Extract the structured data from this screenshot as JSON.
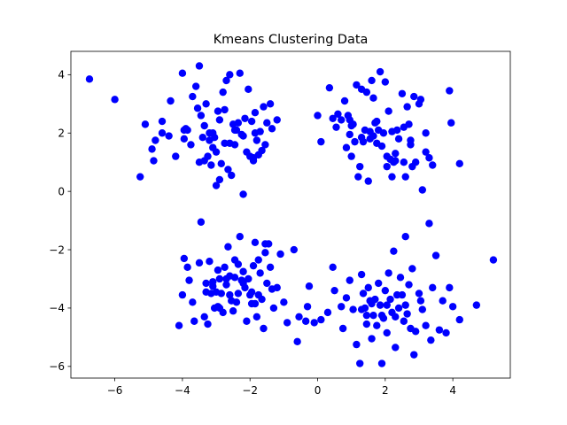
{
  "chart_data": {
    "type": "scatter",
    "title": "Kmeans Clustering Data",
    "xlabel": "",
    "ylabel": "",
    "xlim": [
      -7.3,
      5.7
    ],
    "ylim": [
      -6.4,
      4.8
    ],
    "xticks": [
      -6,
      -4,
      -2,
      0,
      2,
      4
    ],
    "yticks": [
      -6,
      -4,
      -2,
      0,
      2,
      4
    ],
    "xtick_labels": [
      "−6",
      "−4",
      "−2",
      "0",
      "2",
      "4"
    ],
    "ytick_labels": [
      "−6",
      "−4",
      "−2",
      "0",
      "2",
      "4"
    ],
    "grid": false,
    "legend": false,
    "marker_color": "#0000ff",
    "series": [
      {
        "x": [
          -6.75,
          -6.0,
          -5.25,
          -5.1,
          -4.8,
          -4.85,
          -4.9,
          -4.6,
          -4.35,
          -4.2,
          -4.0,
          -3.95,
          -3.85,
          -3.9,
          -3.75,
          -3.6,
          -3.55,
          -3.5,
          -3.4,
          -3.35,
          -3.3,
          -3.25,
          -3.2,
          -3.15,
          -3.1,
          -3.05,
          -3.0,
          -2.95,
          -2.9,
          -2.85,
          -2.8,
          -2.75,
          -2.7,
          -2.65,
          -2.6,
          -2.55,
          -2.5,
          -2.45,
          -2.4,
          -2.35,
          -2.3,
          -2.2,
          -2.1,
          -2.05,
          -2.0,
          -1.95,
          -1.9,
          -1.85,
          -1.8,
          -1.75,
          -1.7,
          -1.6,
          -1.55,
          -1.5,
          -1.4,
          -1.35,
          -1.2,
          -3.45,
          -3.1,
          -2.9,
          -2.6,
          -4.4,
          -4.6,
          -3.7,
          -3.0,
          -2.25,
          -2.15,
          -1.9,
          -3.95,
          -3.5,
          -3.35,
          -3.2,
          -2.75,
          -2.45,
          -2.2,
          -1.85,
          -1.65
        ],
        "y": [
          3.85,
          3.15,
          0.5,
          2.3,
          1.75,
          1.05,
          1.45,
          2.4,
          3.1,
          1.2,
          4.05,
          1.8,
          2.1,
          2.15,
          1.6,
          3.6,
          2.85,
          4.3,
          1.85,
          1.05,
          3.0,
          1.2,
          1.75,
          0.9,
          1.5,
          1.85,
          0.2,
          2.75,
          0.4,
          0.95,
          3.4,
          1.65,
          3.8,
          0.75,
          4.0,
          0.55,
          2.3,
          1.6,
          2.1,
          2.35,
          4.05,
          -0.1,
          1.35,
          3.5,
          1.2,
          2.4,
          1.05,
          2.0,
          1.75,
          1.25,
          2.05,
          2.9,
          1.6,
          2.35,
          3.0,
          2.15,
          2.45,
          2.6,
          2.0,
          2.45,
          1.65,
          1.9,
          2.0,
          3.25,
          1.35,
          1.95,
          2.5,
          1.15,
          2.1,
          1.0,
          2.25,
          2.0,
          2.8,
          2.1,
          1.9,
          2.7,
          1.4
        ]
      },
      {
        "x": [
          0.0,
          0.1,
          0.35,
          0.45,
          0.55,
          0.6,
          0.7,
          0.8,
          0.85,
          0.9,
          0.95,
          1.0,
          1.05,
          1.1,
          1.15,
          1.2,
          1.25,
          1.3,
          1.35,
          1.4,
          1.45,
          1.5,
          1.55,
          1.6,
          1.65,
          1.7,
          1.75,
          1.8,
          1.85,
          1.9,
          1.95,
          2.0,
          2.05,
          2.1,
          2.15,
          2.2,
          2.25,
          2.3,
          2.35,
          2.4,
          2.5,
          2.55,
          2.6,
          2.65,
          2.7,
          2.75,
          2.8,
          2.85,
          2.9,
          3.0,
          3.1,
          3.2,
          3.3,
          3.4,
          3.9,
          3.95,
          4.2,
          3.05,
          2.55,
          1.75,
          1.3,
          0.95,
          2.2,
          2.05,
          1.55,
          2.75,
          1.0,
          1.65,
          2.3,
          3.2
        ],
        "y": [
          2.6,
          1.7,
          3.55,
          2.5,
          2.2,
          2.65,
          2.45,
          3.1,
          1.5,
          2.6,
          1.95,
          1.2,
          2.3,
          1.7,
          3.65,
          0.5,
          0.85,
          3.5,
          1.7,
          2.1,
          3.4,
          0.35,
          1.8,
          3.8,
          3.2,
          2.35,
          1.65,
          2.1,
          4.1,
          1.55,
          2.0,
          3.75,
          0.85,
          2.75,
          1.1,
          0.5,
          1.0,
          1.3,
          2.1,
          1.8,
          3.35,
          1.0,
          0.5,
          2.9,
          2.3,
          1.6,
          0.85,
          3.25,
          1.0,
          3.0,
          0.05,
          1.35,
          1.15,
          0.9,
          3.45,
          2.35,
          0.95,
          3.15,
          2.2,
          2.4,
          1.85,
          2.45,
          2.05,
          1.2,
          2.05,
          1.75,
          2.25,
          1.9,
          1.05,
          2.0
        ]
      },
      {
        "x": [
          -4.1,
          -3.95,
          -3.85,
          -3.8,
          -3.65,
          -3.45,
          -3.35,
          -3.3,
          -3.25,
          -3.2,
          -3.15,
          -3.1,
          -3.05,
          -3.0,
          -2.95,
          -2.9,
          -2.85,
          -2.8,
          -2.75,
          -2.7,
          -2.65,
          -2.6,
          -2.55,
          -2.5,
          -2.45,
          -2.4,
          -2.35,
          -2.3,
          -2.25,
          -2.2,
          -2.15,
          -2.1,
          -2.05,
          -2.0,
          -1.95,
          -1.9,
          -1.85,
          -1.8,
          -1.75,
          -1.7,
          -1.65,
          -1.6,
          -1.55,
          -1.5,
          -1.45,
          -1.4,
          -1.35,
          -1.3,
          -1.2,
          -1.1,
          -1.0,
          -0.9,
          -0.7,
          -0.55,
          -4.0,
          -3.7,
          -3.5,
          -2.95,
          -2.6,
          -2.35,
          -1.85,
          -1.55,
          -2.9,
          -2.7,
          -3.3,
          -2.2,
          -1.75,
          -1.95,
          -3.1,
          -2.45
        ],
        "y": [
          -4.6,
          -2.3,
          -2.6,
          -3.05,
          -4.45,
          -1.05,
          -4.3,
          -3.15,
          -4.55,
          -2.4,
          -3.5,
          -3.1,
          -4.0,
          -3.45,
          -2.7,
          -3.0,
          -3.5,
          -4.15,
          -2.6,
          -3.2,
          -1.9,
          -3.55,
          -3.75,
          -4.1,
          -2.35,
          -3.8,
          -2.5,
          -1.55,
          -3.05,
          -2.75,
          -3.3,
          -4.45,
          -3.0,
          -3.55,
          -3.45,
          -2.55,
          -3.85,
          -4.3,
          -2.35,
          -2.8,
          -3.7,
          -4.7,
          -2.1,
          -3.15,
          -1.8,
          -2.6,
          -3.35,
          -4.0,
          -3.3,
          -2.15,
          -3.8,
          -4.5,
          -2.0,
          -4.3,
          -3.55,
          -3.8,
          -2.45,
          -3.95,
          -2.9,
          -3.5,
          -1.75,
          -1.8,
          -4.0,
          -3.0,
          -3.45,
          -3.15,
          -3.55,
          -3.85,
          -3.25,
          -2.95
        ]
      },
      {
        "x": [
          -0.25,
          -0.3,
          -0.35,
          -0.6,
          -0.1,
          0.1,
          0.3,
          0.45,
          0.7,
          0.75,
          0.95,
          1.05,
          1.15,
          1.25,
          1.3,
          1.35,
          1.4,
          1.45,
          1.5,
          1.55,
          1.6,
          1.65,
          1.7,
          1.75,
          1.8,
          1.85,
          1.9,
          1.95,
          2.0,
          2.05,
          2.1,
          2.15,
          2.2,
          2.25,
          2.3,
          2.35,
          2.4,
          2.45,
          2.5,
          2.55,
          2.6,
          2.65,
          2.7,
          2.75,
          2.8,
          2.85,
          2.9,
          3.0,
          3.1,
          3.2,
          3.3,
          3.4,
          3.5,
          3.6,
          3.7,
          3.8,
          3.9,
          4.0,
          4.2,
          4.7,
          5.2,
          3.35,
          2.6,
          1.9,
          1.3,
          0.85,
          0.5,
          2.3,
          2.05,
          1.6,
          3.05,
          1.45
        ],
        "y": [
          -3.25,
          -3.95,
          -4.45,
          -5.15,
          -4.5,
          -4.4,
          -4.15,
          -2.6,
          -3.95,
          -4.7,
          -3.05,
          -4.05,
          -5.25,
          -5.9,
          -2.85,
          -3.5,
          -4.0,
          -4.55,
          -3.3,
          -3.75,
          -5.05,
          -4.25,
          -3.7,
          -4.6,
          -3.15,
          -3.9,
          -5.9,
          -4.35,
          -3.4,
          -4.85,
          -2.8,
          -3.7,
          -4.15,
          -2.05,
          -5.35,
          -3.55,
          -4.0,
          -2.95,
          -3.55,
          -4.45,
          -1.55,
          -4.2,
          -3.2,
          -4.7,
          -2.65,
          -5.6,
          -4.8,
          -3.5,
          -4.05,
          -4.6,
          -1.1,
          -3.3,
          -2.2,
          -4.75,
          -3.75,
          -4.85,
          -3.3,
          -3.95,
          -4.4,
          -3.9,
          -2.35,
          -5.1,
          -3.9,
          -4.25,
          -4.05,
          -3.65,
          -3.4,
          -4.3,
          -3.9,
          -3.85,
          -3.75,
          -4.25
        ]
      }
    ]
  }
}
